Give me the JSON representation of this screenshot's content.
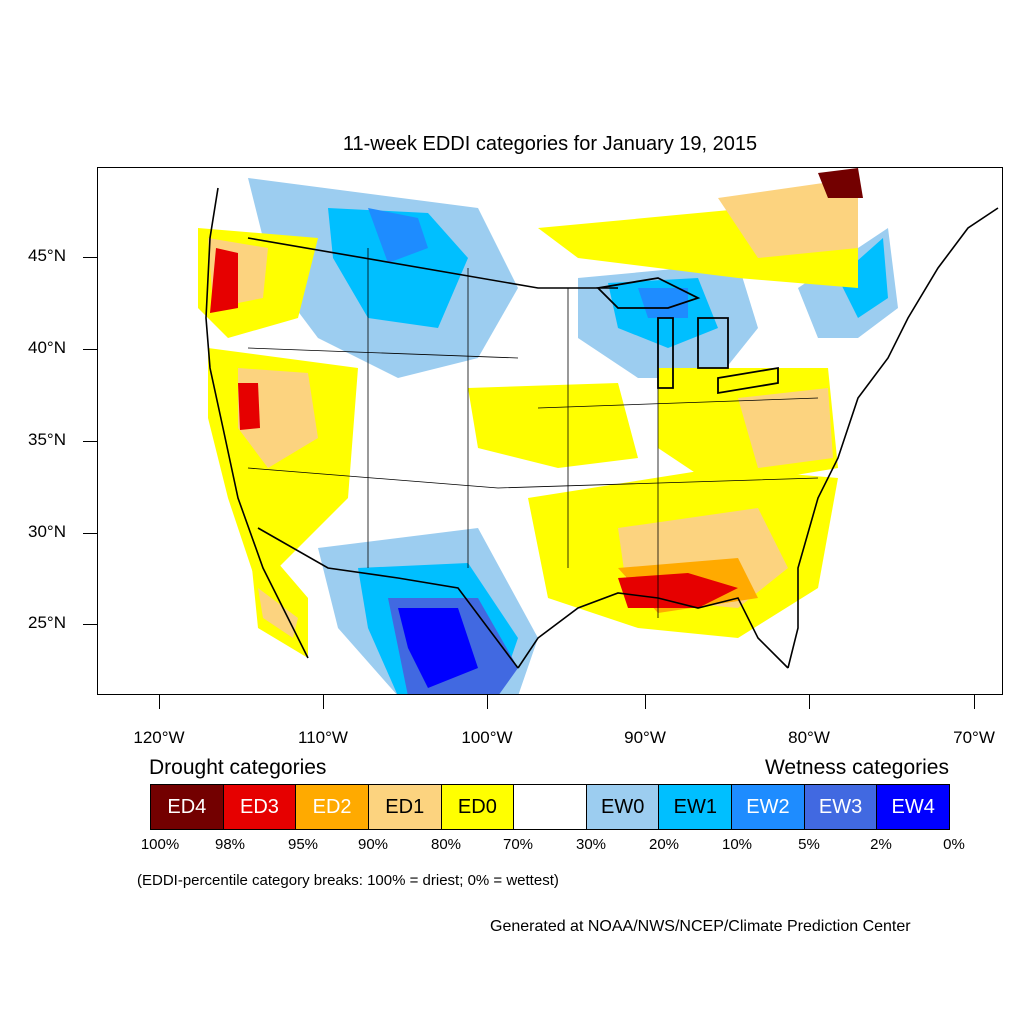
{
  "title": "11-week EDDI categories for January 19, 2015",
  "lat_labels": [
    "45°N",
    "40°N",
    "35°N",
    "30°N",
    "25°N"
  ],
  "lon_labels": [
    "120°W",
    "110°W",
    "100°W",
    "90°W",
    "80°W",
    "70°W"
  ],
  "legend": {
    "drought_heading": "Drought categories",
    "wetness_heading": "Wetness categories",
    "categories": [
      {
        "label": "ED4",
        "color": "#730000",
        "text_color": "#ffffff"
      },
      {
        "label": "ED3",
        "color": "#e60000",
        "text_color": "#ffffff"
      },
      {
        "label": "ED2",
        "color": "#ffaa00",
        "text_color": "#ffffff"
      },
      {
        "label": "ED1",
        "color": "#fcd37f",
        "text_color": "#000000"
      },
      {
        "label": "ED0",
        "color": "#ffff00",
        "text_color": "#000000"
      },
      {
        "label": "",
        "color": "#ffffff",
        "text_color": "#000000"
      },
      {
        "label": "EW0",
        "color": "#9ccdf0",
        "text_color": "#000000"
      },
      {
        "label": "EW1",
        "color": "#00bfff",
        "text_color": "#000000"
      },
      {
        "label": "EW2",
        "color": "#1e8cff",
        "text_color": "#ffffff"
      },
      {
        "label": "EW3",
        "color": "#4169e1",
        "text_color": "#ffffff"
      },
      {
        "label": "EW4",
        "color": "#0000ff",
        "text_color": "#ffffff"
      }
    ],
    "breaks": [
      "100%",
      "98%",
      "95%",
      "90%",
      "80%",
      "70%",
      "30%",
      "20%",
      "10%",
      "5%",
      "2%",
      "0%"
    ]
  },
  "note": "(EDDI-percentile category breaks: 100% = driest; 0% = wettest)",
  "credit": "Generated at NOAA/NWS/NCEP/Climate Prediction Center"
}
